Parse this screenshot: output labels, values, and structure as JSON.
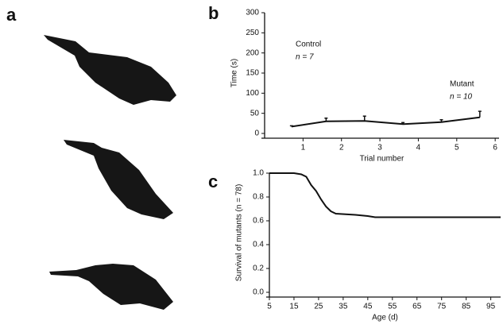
{
  "panel_labels": [
    "a",
    "b",
    "c"
  ],
  "chart_data": [
    {
      "type": "line",
      "xlabel": "Trial number",
      "ylabel": "Time (s)",
      "annotations": [
        "Control",
        "n = 7",
        "Mutant",
        "n = 10"
      ],
      "x": [
        0.7,
        1.6,
        2.6,
        3.6,
        4.6,
        5.6
      ],
      "values": [
        17,
        30,
        31,
        23,
        28,
        40
      ],
      "errors": [
        2,
        8,
        12,
        4,
        6,
        15
      ],
      "color": "#111111",
      "xlim": [
        0,
        6.1
      ],
      "xticks": [
        1,
        2,
        3,
        4,
        5,
        6
      ],
      "ylim": [
        0,
        300
      ],
      "yticks": [
        0,
        50,
        100,
        150,
        200,
        250,
        300
      ]
    },
    {
      "type": "line",
      "xlabel": "Age (d)",
      "ylabel": "Survival of mutants (n = 78)",
      "x": [
        5,
        15,
        18,
        20,
        22,
        24,
        26,
        28,
        30,
        32,
        40,
        45,
        48,
        99
      ],
      "values": [
        1.0,
        1.0,
        0.99,
        0.97,
        0.9,
        0.85,
        0.78,
        0.72,
        0.68,
        0.66,
        0.65,
        0.64,
        0.63,
        0.63
      ],
      "color": "#111111",
      "xlim": [
        5,
        99
      ],
      "xticks": [
        5,
        15,
        25,
        35,
        45,
        55,
        65,
        75,
        85,
        95
      ],
      "ylim": [
        0,
        1.0
      ],
      "yticks": [
        {
          "value": 0,
          "label": "0.0"
        },
        0.2,
        0.4,
        0.6,
        0.8,
        {
          "value": 1,
          "label": "1.0"
        }
      ]
    }
  ]
}
